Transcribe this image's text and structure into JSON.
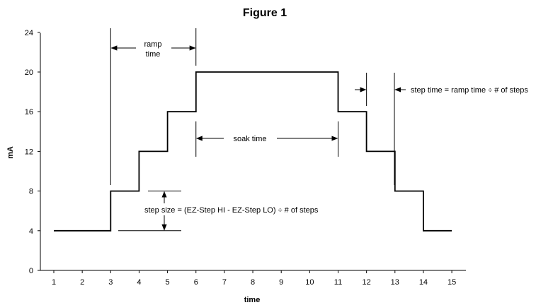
{
  "chart_data": {
    "type": "line",
    "title": "Figure 1",
    "xlabel": "time",
    "ylabel": "mA",
    "x_ticks": [
      1,
      2,
      3,
      4,
      5,
      6,
      7,
      8,
      9,
      10,
      11,
      12,
      13,
      14,
      15
    ],
    "y_ticks": [
      0,
      4,
      8,
      12,
      16,
      20,
      24
    ],
    "xlim": [
      0.5,
      15.5
    ],
    "ylim": [
      0,
      24
    ],
    "grid": false,
    "step_series": [
      [
        1,
        4
      ],
      [
        3,
        4
      ],
      [
        3,
        8
      ],
      [
        4,
        8
      ],
      [
        4,
        12
      ],
      [
        5,
        12
      ],
      [
        5,
        16
      ],
      [
        6,
        16
      ],
      [
        6,
        20
      ],
      [
        11,
        20
      ],
      [
        11,
        16
      ],
      [
        12,
        16
      ],
      [
        12,
        12
      ],
      [
        13,
        12
      ],
      [
        13,
        8
      ],
      [
        14,
        8
      ],
      [
        14,
        4
      ],
      [
        15,
        4
      ]
    ],
    "annotations": {
      "ramp_line1": "ramp",
      "ramp_line2": "time",
      "soak": "soak time",
      "step_time": "step time = ramp time ÷ # of steps",
      "step_size": "step size = (EZ-Step HI - EZ-Step LO) ÷ # of steps"
    }
  }
}
